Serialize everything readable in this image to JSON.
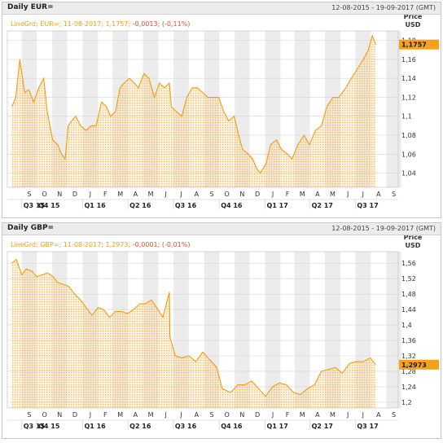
{
  "colors": {
    "line": "#f39c12",
    "fill": "#fcd9a5",
    "band": "#ececec",
    "grid": "#d5d5d5",
    "neg": "#e34a33",
    "label": "#f39c12",
    "last_bg": "#f7a11a"
  },
  "chart_data": [
    {
      "type": "area",
      "title": "Daily EUR=",
      "date_range": "12-08-2015 - 19-09-2017 (GMT)",
      "legend": {
        "series": "LineGrd; EUR=;",
        "date": "11-08-2017;",
        "value": "1,1757;",
        "change": "-0,0013;",
        "change_pct": "(-0,11%)"
      },
      "ylabel": "Price\nUSD",
      "ylabel_lines": [
        "Price",
        "USD"
      ],
      "ylim": [
        1.025,
        1.19
      ],
      "yticks": [
        1.04,
        1.06,
        1.08,
        1.1,
        1.12,
        1.14,
        1.16,
        1.18
      ],
      "ytick_labels": [
        "1,04",
        "1,06",
        "1,08",
        "1,1",
        "1,12",
        "1,14",
        "1,16",
        "1,18"
      ],
      "last_value": 1.1757,
      "last_value_label": "1,1757",
      "month_labels": [
        "S",
        "O",
        "N",
        "D",
        "J",
        "F",
        "M",
        "A",
        "M",
        "J",
        "J",
        "A",
        "S",
        "O",
        "N",
        "D",
        "J",
        "F",
        "M",
        "A",
        "M",
        "J",
        "J",
        "A",
        "S"
      ],
      "quarter_labels": [
        "Q3 15",
        "Q4 15",
        "Q1 16",
        "Q2 16",
        "Q3 16",
        "Q4 16",
        "Q1 17",
        "Q2 17",
        "Q3 17"
      ],
      "x": [
        "2015-08-12",
        "2015-08-20",
        "2015-08-28",
        "2015-09-07",
        "2015-09-15",
        "2015-09-25",
        "2015-10-05",
        "2015-10-15",
        "2015-10-22",
        "2015-11-02",
        "2015-11-12",
        "2015-11-20",
        "2015-11-27",
        "2015-12-03",
        "2015-12-10",
        "2015-12-18",
        "2015-12-28",
        "2016-01-08",
        "2016-01-18",
        "2016-01-28",
        "2016-02-08",
        "2016-02-18",
        "2016-02-26",
        "2016-03-07",
        "2016-03-16",
        "2016-03-24",
        "2016-04-04",
        "2016-04-14",
        "2016-04-22",
        "2016-05-03",
        "2016-05-13",
        "2016-05-24",
        "2016-06-03",
        "2016-06-13",
        "2016-06-23",
        "2016-06-27",
        "2016-07-07",
        "2016-07-18",
        "2016-07-28",
        "2016-08-08",
        "2016-08-18",
        "2016-08-29",
        "2016-09-08",
        "2016-09-20",
        "2016-09-30",
        "2016-10-10",
        "2016-10-20",
        "2016-10-31",
        "2016-11-09",
        "2016-11-17",
        "2016-11-28",
        "2016-12-07",
        "2016-12-15",
        "2016-12-22",
        "2017-01-03",
        "2017-01-12",
        "2017-01-24",
        "2017-02-03",
        "2017-02-15",
        "2017-02-24",
        "2017-03-08",
        "2017-03-20",
        "2017-03-31",
        "2017-04-12",
        "2017-04-24",
        "2017-05-05",
        "2017-05-17",
        "2017-05-29",
        "2017-06-12",
        "2017-06-23",
        "2017-07-05",
        "2017-07-17",
        "2017-07-27",
        "2017-08-04",
        "2017-08-11"
      ],
      "y": [
        1.11,
        1.12,
        1.16,
        1.125,
        1.128,
        1.115,
        1.13,
        1.14,
        1.105,
        1.075,
        1.07,
        1.06,
        1.055,
        1.09,
        1.095,
        1.1,
        1.09,
        1.085,
        1.09,
        1.09,
        1.115,
        1.11,
        1.1,
        1.105,
        1.13,
        1.135,
        1.14,
        1.135,
        1.13,
        1.145,
        1.14,
        1.12,
        1.135,
        1.13,
        1.135,
        1.11,
        1.105,
        1.1,
        1.12,
        1.13,
        1.13,
        1.125,
        1.12,
        1.12,
        1.12,
        1.105,
        1.095,
        1.1,
        1.08,
        1.065,
        1.06,
        1.055,
        1.045,
        1.04,
        1.05,
        1.07,
        1.075,
        1.065,
        1.06,
        1.055,
        1.07,
        1.08,
        1.07,
        1.085,
        1.09,
        1.11,
        1.12,
        1.12,
        1.13,
        1.14,
        1.15,
        1.16,
        1.17,
        1.185,
        1.1757
      ]
    },
    {
      "type": "area",
      "title": "Daily GBP=",
      "date_range": "12-08-2015 - 19-09-2017 (GMT)",
      "legend": {
        "series": "LineGrd; GBP=;",
        "date": "11-08-2017;",
        "value": "1,2973;",
        "change": "-0,0001;",
        "change_pct": "(-0,01%)"
      },
      "ylabel": "Price\nUSD",
      "ylabel_lines": [
        "Price",
        "USD"
      ],
      "ylim": [
        1.185,
        1.59
      ],
      "yticks": [
        1.2,
        1.24,
        1.28,
        1.32,
        1.36,
        1.4,
        1.44,
        1.48,
        1.52,
        1.56
      ],
      "ytick_labels": [
        "1,2",
        "1,24",
        "1,28",
        "1,32",
        "1,36",
        "1,4",
        "1,44",
        "1,48",
        "1,52",
        "1,56"
      ],
      "last_value": 1.2973,
      "last_value_label": "1,2973",
      "month_labels": [
        "S",
        "O",
        "N",
        "D",
        "J",
        "F",
        "M",
        "A",
        "M",
        "J",
        "J",
        "A",
        "S",
        "O",
        "N",
        "D",
        "J",
        "F",
        "M",
        "A",
        "M",
        "J",
        "J",
        "A",
        "S"
      ],
      "quarter_labels": [
        "Q3 15",
        "Q4 15",
        "Q1 16",
        "Q2 16",
        "Q3 16",
        "Q4 16",
        "Q1 17",
        "Q2 17",
        "Q3 17"
      ],
      "x": [
        "2015-08-12",
        "2015-08-21",
        "2015-09-01",
        "2015-09-10",
        "2015-09-21",
        "2015-10-01",
        "2015-10-12",
        "2015-10-23",
        "2015-11-03",
        "2015-11-12",
        "2015-11-24",
        "2015-12-04",
        "2015-12-16",
        "2015-12-28",
        "2016-01-08",
        "2016-01-20",
        "2016-02-01",
        "2016-02-12",
        "2016-02-24",
        "2016-03-07",
        "2016-03-18",
        "2016-03-31",
        "2016-04-12",
        "2016-04-25",
        "2016-05-06",
        "2016-05-18",
        "2016-05-31",
        "2016-06-10",
        "2016-06-23",
        "2016-06-24",
        "2016-07-05",
        "2016-07-18",
        "2016-08-01",
        "2016-08-15",
        "2016-08-29",
        "2016-09-12",
        "2016-09-26",
        "2016-10-07",
        "2016-10-24",
        "2016-11-07",
        "2016-11-21",
        "2016-12-05",
        "2016-12-19",
        "2017-01-02",
        "2017-01-16",
        "2017-01-30",
        "2017-02-13",
        "2017-02-27",
        "2017-03-13",
        "2017-03-27",
        "2017-04-10",
        "2017-04-24",
        "2017-05-08",
        "2017-05-22",
        "2017-06-05",
        "2017-06-19",
        "2017-07-03",
        "2017-07-17",
        "2017-07-31",
        "2017-08-11"
      ],
      "y": [
        1.56,
        1.57,
        1.53,
        1.545,
        1.54,
        1.525,
        1.53,
        1.535,
        1.525,
        1.51,
        1.505,
        1.5,
        1.48,
        1.465,
        1.445,
        1.425,
        1.445,
        1.44,
        1.42,
        1.435,
        1.435,
        1.43,
        1.44,
        1.455,
        1.455,
        1.465,
        1.44,
        1.42,
        1.485,
        1.37,
        1.32,
        1.315,
        1.32,
        1.305,
        1.33,
        1.31,
        1.29,
        1.235,
        1.225,
        1.245,
        1.245,
        1.255,
        1.235,
        1.215,
        1.24,
        1.25,
        1.245,
        1.225,
        1.22,
        1.235,
        1.245,
        1.28,
        1.285,
        1.29,
        1.275,
        1.3,
        1.305,
        1.305,
        1.315,
        1.2973
      ]
    }
  ]
}
